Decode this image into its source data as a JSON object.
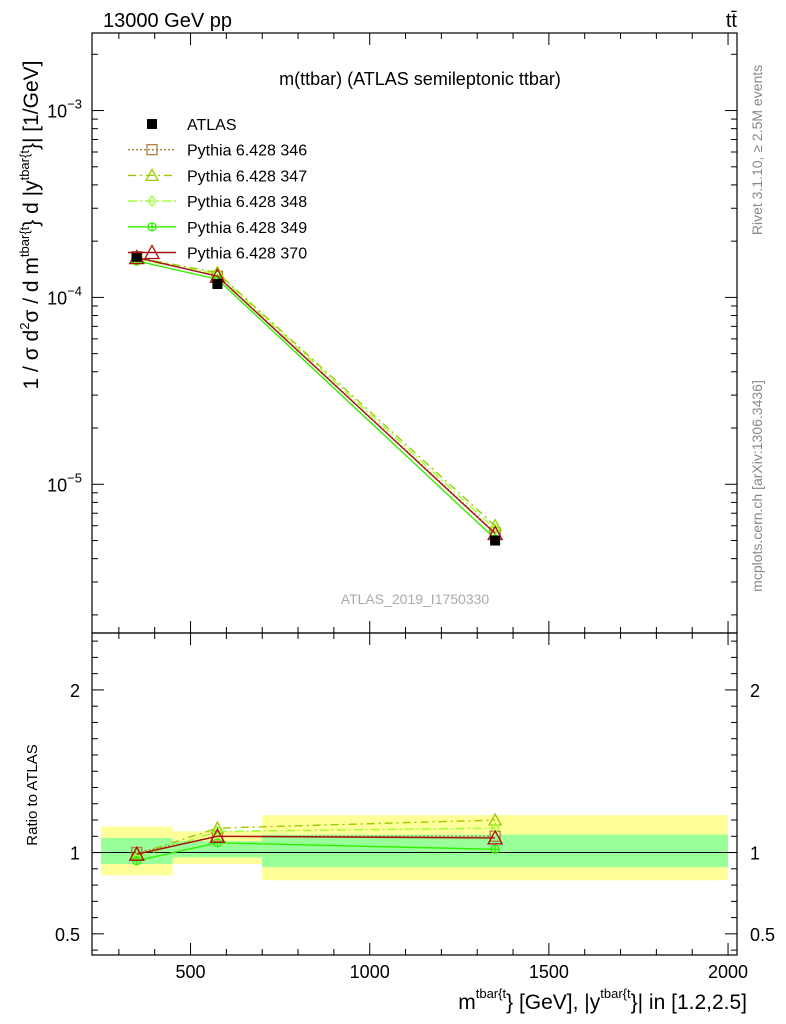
{
  "header": {
    "left": "13000 GeV pp",
    "right": "tt̄"
  },
  "side": {
    "rivet": "Rivet 3.1.10, ≥ 2.5M events",
    "mcplots": "mcplots.cern.ch [arXiv:1306.3436]"
  },
  "chart_data": {
    "type": "line",
    "title": "m(ttbar) (ATLAS semileptonic ttbar)",
    "watermark": "ATLAS_2019_I1750330",
    "xlabel": {
      "main1": "m",
      "sup1": "tbar{t",
      "main2": "} [GeV], |y",
      "sup2": "tbar{t",
      "main3": "}| in [1.2,2.5]"
    },
    "ylabel": {
      "p1": "1 / σ d",
      "s1": "2",
      "p2": "σ / d m",
      "s2": "tbar{t",
      "p3": "} d |y",
      "s3": "tbar{t",
      "p4": "}| [1/GeV]"
    },
    "ratio_ylabel": "Ratio to ATLAS",
    "xlim": [
      225,
      2025
    ],
    "ylim": [
      1.6e-06,
      0.0026
    ],
    "ratio_ylim": [
      0.37,
      2.35
    ],
    "x_ticks": [
      500,
      1000,
      1500,
      2000
    ],
    "x_tick_labels": [
      "500",
      "1000",
      "1500",
      "2000"
    ],
    "y_ticks": [
      1e-05,
      0.0001,
      0.001
    ],
    "y_tick_labels": [
      {
        "base": "10",
        "exp": "−5"
      },
      {
        "base": "10",
        "exp": "−4"
      },
      {
        "base": "10",
        "exp": "−3"
      }
    ],
    "ratio_ticks": [
      0.5,
      1,
      2
    ],
    "ratio_tick_labels": [
      "0.5",
      "1",
      "2"
    ],
    "bins": [
      [
        250,
        450
      ],
      [
        450,
        700
      ],
      [
        700,
        2000
      ]
    ],
    "x": [
      350,
      575,
      1350
    ],
    "data": {
      "name": "ATLAS",
      "values": [
        0.000165,
        0.000118,
        5e-06
      ],
      "band_inner": [
        [
          0.93,
          1.09
        ],
        [
          0.97,
          1.07
        ],
        [
          0.91,
          1.11
        ]
      ],
      "band_outer": [
        [
          0.86,
          1.16
        ],
        [
          0.93,
          1.13
        ],
        [
          0.83,
          1.23
        ]
      ]
    },
    "series": [
      {
        "name": "Pythia 6.428 346",
        "color": "#b07d40",
        "marker": "square-open",
        "dash": "2,2",
        "ratio": [
          1.0,
          1.1,
          1.1
        ]
      },
      {
        "name": "Pythia 6.428 347",
        "color": "#99cc00",
        "marker": "triangle-open",
        "dash": "8,4,2,4",
        "ratio": [
          0.99,
          1.15,
          1.2
        ]
      },
      {
        "name": "Pythia 6.428 348",
        "color": "#99ff33",
        "marker": "diamond-open",
        "dash": "9,3,2,3",
        "ratio": [
          0.97,
          1.13,
          1.15
        ]
      },
      {
        "name": "Pythia 6.428 349",
        "color": "#33ee00",
        "marker": "circle-cross",
        "dash": "",
        "ratio": [
          0.95,
          1.06,
          1.02
        ]
      },
      {
        "name": "Pythia 6.428 370",
        "color": "#aa1111",
        "marker": "triangle-open",
        "dash": "",
        "ratio": [
          0.99,
          1.1,
          1.09
        ]
      }
    ],
    "legend_position": "top-left"
  }
}
